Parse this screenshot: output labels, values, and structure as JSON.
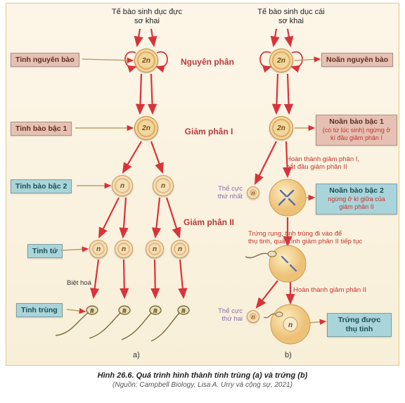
{
  "caption": {
    "line1": "Hình 26.6. Quá trình hình thành tinh trùng (a) và trứng (b)",
    "line2": "(Nguồn: Campbell Biology, Lisa A. Urry và cộng sự, 2021)"
  },
  "headers": {
    "male": "Tế bào sinh dục đực\nsơ khai",
    "female": "Tế bào sinh dục cái\nsơ khai"
  },
  "stages": {
    "s1": {
      "text": "Nguyên phân",
      "color": "#b83a3c"
    },
    "s2": {
      "text": "Giảm phân I",
      "color": "#b83a3c"
    },
    "s3": {
      "text": "Giảm phân II",
      "color": "#b83a3c"
    }
  },
  "labels": {
    "L1": {
      "text": "Tinh nguyên bào",
      "bg": "#e6c1b3",
      "fg": "#5e2f20"
    },
    "L2": {
      "text": "Tinh bào bậc 1",
      "bg": "#e6c1b3",
      "fg": "#5e2f20"
    },
    "L3": {
      "text": "Tinh bào bậc 2",
      "bg": "#a9d4da",
      "fg": "#1a4f56"
    },
    "L4": {
      "text": "Tinh tử",
      "bg": "#a9d4da",
      "fg": "#1a4f56"
    },
    "L5": {
      "text": "Tinh trùng",
      "bg": "#a9d4da",
      "fg": "#1a4f56"
    },
    "R1": {
      "text": "Noãn nguyên bào",
      "bg": "#e6c1b3",
      "fg": "#5e2f20"
    },
    "R2": {
      "line1": "Noãn bào bậc 1",
      "line2": "(có từ lúc sinh) ngừng ở\nkì đầu giảm phân I",
      "bg": "#e6c1b3",
      "fg": "#5e2f20",
      "fg2": "#c2372f"
    },
    "R3": {
      "line1": "Noãn bào bậc 2",
      "line2": "ngừng ở kì giữa của\ngiảm phân II",
      "bg": "#a9d4da",
      "fg": "#1a4f56",
      "fg2": "#c2372f"
    },
    "R4": {
      "line1": "Trứng được",
      "line2": "thụ tinh",
      "bg": "#a9d4da",
      "fg": "#1a4f56"
    }
  },
  "notes": {
    "diff": "Biệt hoá",
    "n1": "Hoàn thành giảm phân I,\nbắt đầu giảm phân II",
    "n2": "Trứng rụng, tinh trùng đi vào để\nthụ tinh, quá trình giảm phân II tiếp tục",
    "n3": "Hoàn thành giảm phân II",
    "pb1": "Thể cực\nthứ nhất",
    "pb2": "Thể cực\nthứ hai",
    "a": "a)",
    "b": "b)"
  },
  "colors": {
    "arrow": "#d9333a",
    "cell_2n_fill": "#f0d79c",
    "cell_2n_ring": "#e6a864",
    "cell_2n_border": "#c98b3a",
    "cell_n_fill": "#f2dfb8",
    "cell_n_ring": "#e9b882",
    "cell_n_border": "#cf9a54",
    "sperm_head": "#e9dfb8",
    "sperm_outline": "#7a6a3f",
    "egg_fill": "#f4d9a4",
    "egg_border": "#cf9a54",
    "small_cell": "#efe0b8",
    "text_dark": "#333333"
  },
  "cells": {
    "txt2n": "2n",
    "txtn": "n"
  }
}
